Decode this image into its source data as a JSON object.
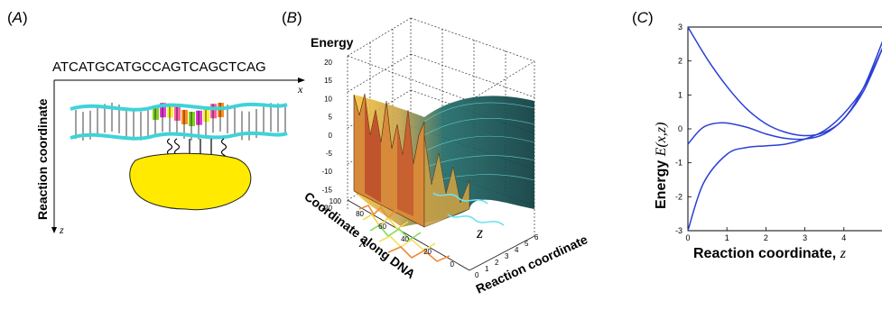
{
  "panels": {
    "a": {
      "label_open": "(",
      "label_letter": "A",
      "label_close": ")",
      "sequence": "ATCATGCATGCCAGTCAGCTCAG",
      "y_axis_label": "Reaction coordinate",
      "x_axis_symbol": "x",
      "z_axis_symbol": "z",
      "colors": {
        "dna_strand": "#3fd3d8",
        "protein": "#ffea00",
        "bases": [
          "#ff8c1a",
          "#7fd01f",
          "#e23ad6",
          "#f7f32a",
          "#ff5ba8"
        ]
      }
    },
    "b": {
      "label_open": "(",
      "label_letter": "B",
      "label_close": ")",
      "z_title": "Energy",
      "x_axis_label": "Coordinate along DNA",
      "x_symbol": "x",
      "y_axis_label": "Reaction coordinate",
      "y_symbol": "z",
      "z_ticks": [
        "20",
        "15",
        "10",
        "5",
        "0",
        "-5",
        "-10",
        "-15",
        "-20"
      ],
      "x_ticks": [
        "100",
        "80",
        "60",
        "40",
        "20",
        "0"
      ],
      "y_ticks": [
        "0",
        "1",
        "2",
        "3",
        "4",
        "5",
        "6"
      ]
    },
    "c": {
      "label_open": "(",
      "label_letter": "C",
      "label_close": ")",
      "y_label_text": "Energy ",
      "y_label_func": "E(x,z)",
      "x_label_text": "Reaction coordinate, ",
      "x_label_var": "z"
    }
  },
  "chart_data": {
    "type": "line",
    "xlabel": "Reaction coordinate, z",
    "ylabel": "Energy E(x,z)",
    "xlim": [
      0,
      5
    ],
    "ylim": [
      -3,
      3
    ],
    "xticks": [
      "0",
      "1",
      "2",
      "3",
      "4"
    ],
    "yticks": [
      "3",
      "2",
      "1",
      "0",
      "-1",
      "-2",
      "-3"
    ],
    "line_color": "#2b3fd6",
    "series": [
      {
        "x": [
          0,
          0.5,
          1,
          1.5,
          2,
          2.5,
          3,
          3.5,
          4,
          4.5,
          5
        ],
        "values": [
          3.0,
          2.05,
          1.25,
          0.6,
          0.15,
          -0.1,
          -0.2,
          -0.1,
          0.3,
          1.2,
          2.6
        ]
      },
      {
        "x": [
          0,
          0.4,
          0.9,
          1.5,
          2,
          2.5,
          3,
          3.5,
          4,
          4.5,
          5
        ],
        "values": [
          -0.45,
          0.05,
          0.18,
          0.05,
          -0.15,
          -0.28,
          -0.3,
          -0.15,
          0.3,
          1.1,
          2.4
        ]
      },
      {
        "x": [
          0,
          0.4,
          1,
          1.5,
          2,
          2.5,
          3,
          3.5,
          4,
          4.5,
          5
        ],
        "values": [
          -3.0,
          -1.6,
          -0.75,
          -0.55,
          -0.5,
          -0.45,
          -0.3,
          -0.05,
          0.45,
          1.2,
          2.4
        ]
      }
    ]
  }
}
